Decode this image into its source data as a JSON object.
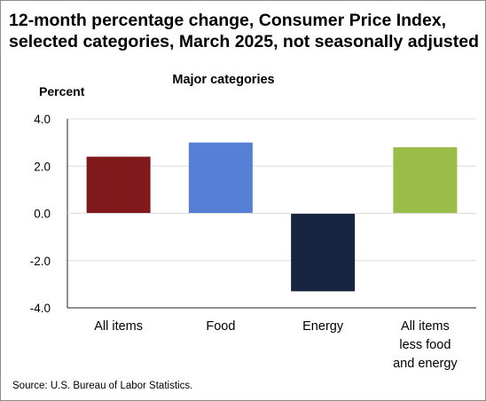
{
  "title_lines": [
    "12-month percentage change, Consumer Price Index,",
    "selected categories, March 2025, not seasonally adjusted"
  ],
  "subtitle": "Major categories",
  "source": "Source: U.S. Bureau of Labor Statistics.",
  "chart_data": {
    "type": "bar",
    "title": "12-month percentage change, Consumer Price Index, selected categories, March 2025, not seasonally adjusted",
    "subtitle": "Major categories",
    "ylabel": "Percent",
    "xlabel": "",
    "categories": [
      [
        "All items"
      ],
      [
        "Food"
      ],
      [
        "Energy"
      ],
      [
        "All items",
        "less food",
        "and energy"
      ]
    ],
    "values": [
      2.4,
      3.0,
      -3.3,
      2.8
    ],
    "colors": [
      "#80191c",
      "#5580d6",
      "#182540",
      "#99bd48"
    ],
    "ylim": [
      -4.0,
      4.0
    ],
    "yticks": [
      4.0,
      2.0,
      0.0,
      -2.0,
      -4.0
    ],
    "ytick_labels": [
      "4.0",
      "2.0",
      "0.0",
      "-2.0",
      "-4.0"
    ],
    "grid": true,
    "grid_color": "#dcdcdc",
    "legend": "none"
  }
}
